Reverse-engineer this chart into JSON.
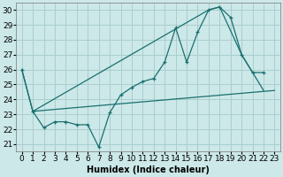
{
  "background_color": "#cce8e8",
  "grid_color": "#aacece",
  "line_color": "#1a7070",
  "xlim": [
    -0.5,
    23.5
  ],
  "ylim": [
    20.5,
    30.5
  ],
  "xlabel": "Humidex (Indice chaleur)",
  "yticks": [
    21,
    22,
    23,
    24,
    25,
    26,
    27,
    28,
    29,
    30
  ],
  "xticks": [
    0,
    1,
    2,
    3,
    4,
    5,
    6,
    7,
    8,
    9,
    10,
    11,
    12,
    13,
    14,
    15,
    16,
    17,
    18,
    19,
    20,
    21,
    22,
    23
  ],
  "line1_x": [
    0,
    1,
    2,
    3,
    4,
    5,
    6,
    7,
    8,
    9,
    10,
    11,
    12,
    13,
    14,
    15,
    16,
    17,
    18,
    19,
    20,
    21,
    22
  ],
  "line1_y": [
    26,
    23.2,
    22.1,
    22.5,
    22.5,
    22.3,
    22.3,
    20.8,
    23.1,
    24.3,
    24.8,
    25.2,
    25.4,
    26.5,
    28.8,
    26.5,
    28.5,
    30.0,
    30.2,
    29.5,
    27.0,
    25.8,
    25.8
  ],
  "line2_x": [
    0,
    1,
    17,
    18,
    20,
    22
  ],
  "line2_y": [
    26,
    23.2,
    30.0,
    30.2,
    27.0,
    24.6
  ],
  "line3_x": [
    1,
    23
  ],
  "line3_y": [
    23.2,
    24.6
  ],
  "font_size_label": 7,
  "font_size_tick": 6.5
}
